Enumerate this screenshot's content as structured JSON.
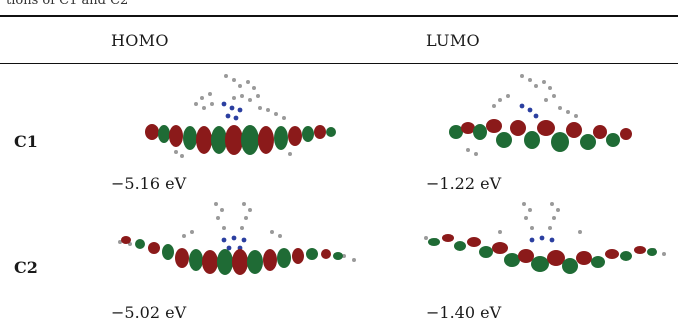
{
  "caption_fragment": "tions of C1 and C2",
  "table": {
    "headers": [
      "HOMO",
      "LUMO"
    ],
    "rows": [
      {
        "label": "C1",
        "homo_energy": "−5.16 eV",
        "lumo_energy": "−1.22 eV"
      },
      {
        "label": "C2",
        "homo_energy": "−5.02 eV",
        "lumo_energy": "−1.40 eV"
      }
    ]
  },
  "colors": {
    "lobe_red": "#8b1a1a",
    "lobe_green": "#1f6b35",
    "atom_grey": "#9a9a9a",
    "atom_blue": "#2b3fa0"
  }
}
